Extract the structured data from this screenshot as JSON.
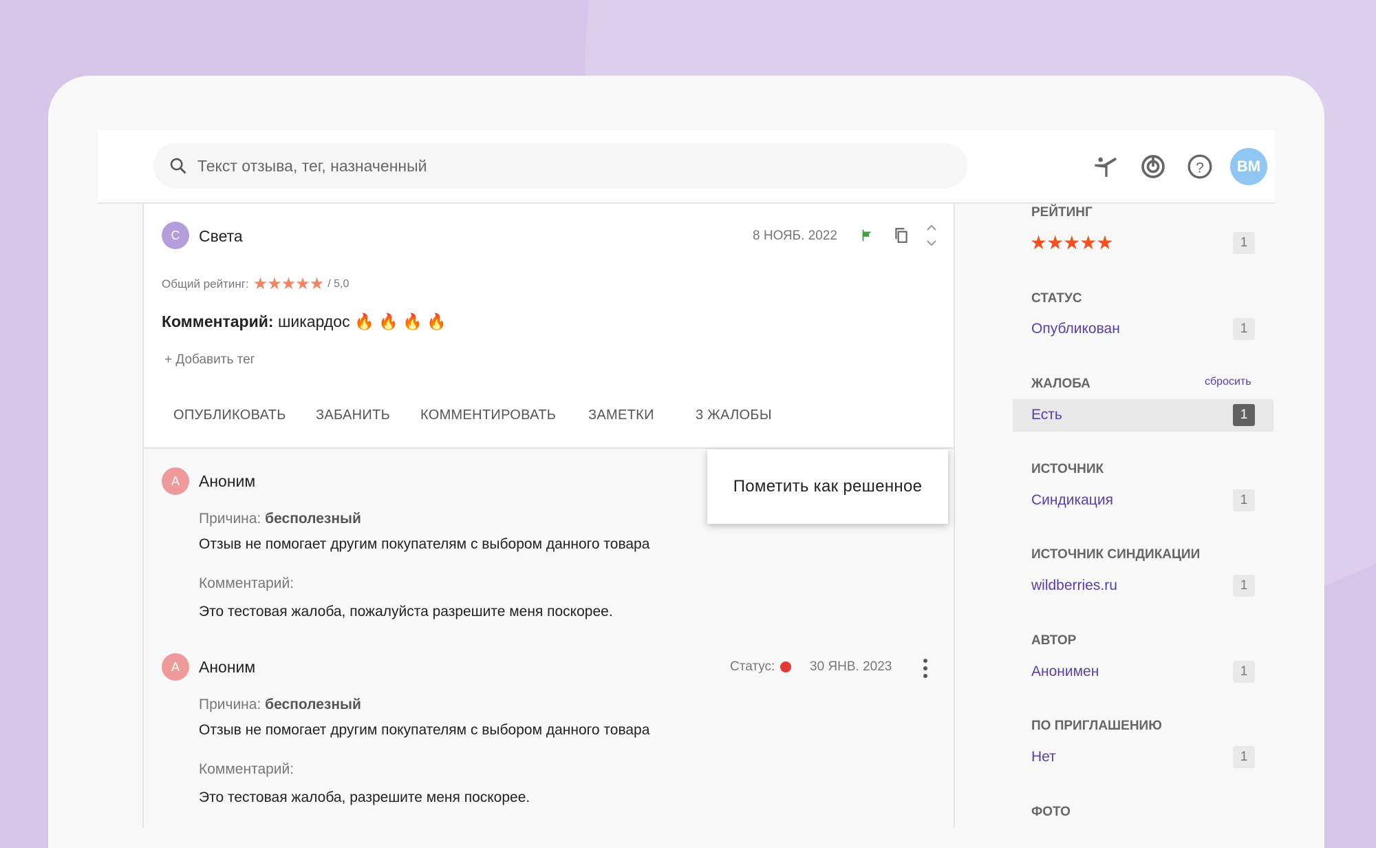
{
  "header": {
    "search_placeholder": "Текст отзыва, тег, назначенный",
    "avatar_initials": "ВМ"
  },
  "review": {
    "author_initial": "С",
    "author": "Света",
    "date": "8 НОЯБ. 2022",
    "rating_label": "Общий рейтинг:",
    "rating": 5,
    "rating_suffix": "/ 5,0",
    "comment_label": "Комментарий:",
    "comment_text": "шикардос",
    "add_tag": "+ Добавить тег",
    "actions": [
      "ОПУБЛИКОВАТЬ",
      "ЗАБАНИТЬ",
      "КОММЕНТИРОВАТЬ",
      "ЗАМЕТКИ",
      "3 ЖАЛОБЫ"
    ]
  },
  "popup": {
    "label": "Пометить как решенное"
  },
  "complaints": [
    {
      "initial": "А",
      "author": "Аноним",
      "reason_label": "Причина:",
      "reason": "бесполезный",
      "reason_text": "Отзыв не помогает другим покупателям с выбором данного товара",
      "comment_label": "Комментарий:",
      "comment": "Это тестовая жалоба, пожалуйста разрешите меня поскорее."
    },
    {
      "initial": "А",
      "author": "Аноним",
      "status_label": "Статус:",
      "status_color": "#e53935",
      "date": "30 ЯНВ. 2023",
      "reason_label": "Причина:",
      "reason": "бесполезный",
      "reason_text": "Отзыв не помогает другим покупателям с выбором данного товара",
      "comment_label": "Комментарий:",
      "comment": "Это тестовая жалоба, разрешите меня поскорее."
    }
  ],
  "filters": {
    "rating": {
      "title": "РЕЙТИНГ",
      "stars": 5,
      "count": "1"
    },
    "status": {
      "title": "СТАТУС",
      "value": "Опубликован",
      "count": "1"
    },
    "complaint": {
      "title": "ЖАЛОБА",
      "reset": "сбросить",
      "value": "Есть",
      "count": "1"
    },
    "source": {
      "title": "ИСТОЧНИК",
      "value": "Синдикация",
      "count": "1"
    },
    "synd_source": {
      "title": "ИСТОЧНИК СИНДИКАЦИИ",
      "value": "wildberries.ru",
      "count": "1"
    },
    "author": {
      "title": "АВТОР",
      "value": "Анонимен",
      "count": "1"
    },
    "invite": {
      "title": "ПО ПРИГЛАШЕНИЮ",
      "value": "Нет",
      "count": "1"
    },
    "photo": {
      "title": "ФОТО"
    }
  },
  "colors": {
    "accent": "#5a3ea8",
    "star": "#f4511e",
    "flag": "#43a047",
    "avatar_review": "#b39ddb",
    "avatar_anon": "#ef9a9a"
  }
}
